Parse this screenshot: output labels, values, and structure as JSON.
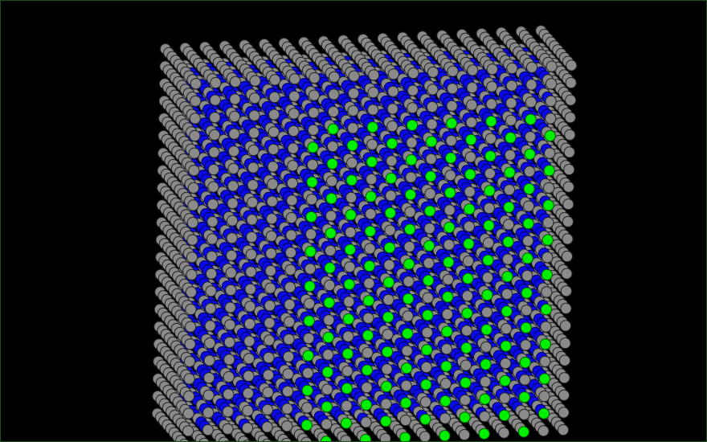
{
  "scene": {
    "background": "#000000",
    "frame_border": "#1f4f1f",
    "lattice": {
      "columns": 20,
      "layers": 10,
      "rows": 22,
      "surface_front": {
        "start_column": 6,
        "end_column": 18,
        "start_row": 3,
        "end_row": 21
      }
    },
    "atom_types": [
      {
        "name": "edge-atom",
        "color": "#8a8a8a",
        "stroke": "#222222"
      },
      {
        "name": "inner-atom",
        "color": "#0a0ae6",
        "stroke": "#000055"
      },
      {
        "name": "surface-atom",
        "color": "#00ee00",
        "stroke": "#005500"
      }
    ]
  }
}
